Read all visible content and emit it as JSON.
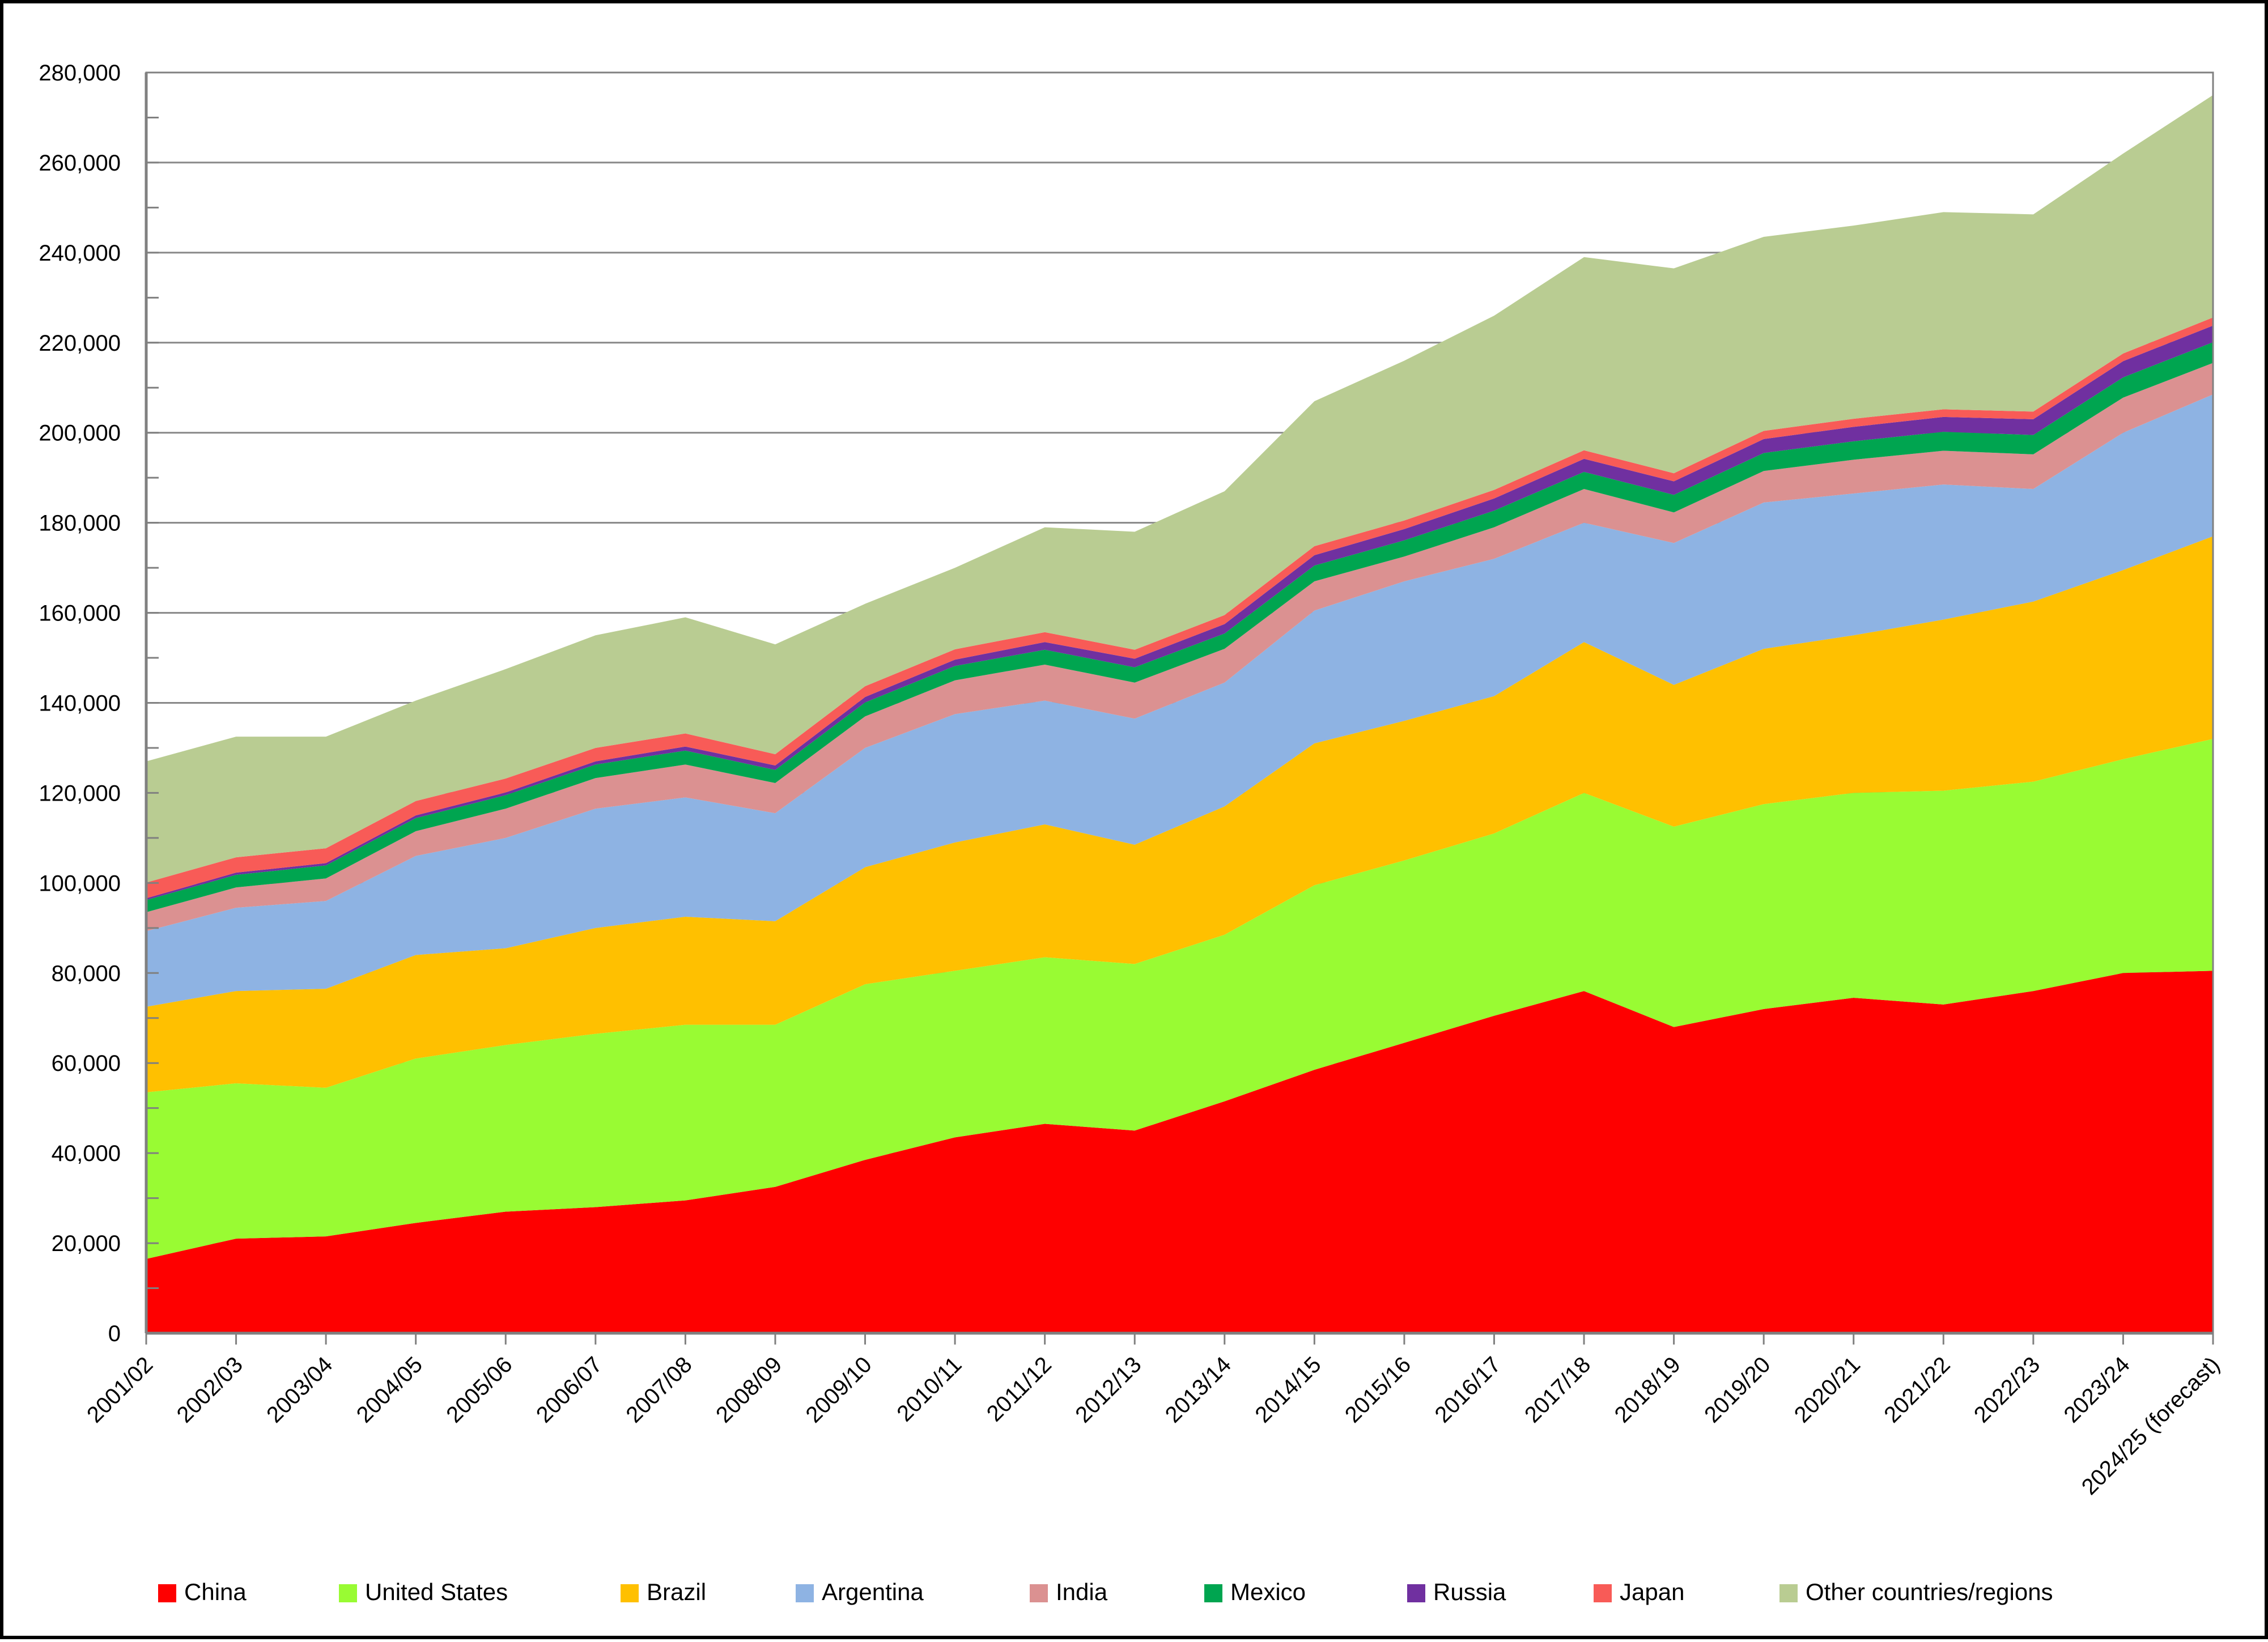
{
  "chart_data": {
    "type": "area",
    "stacked": true,
    "title": "",
    "xlabel": "",
    "ylabel": "",
    "grid": "horizontal-major",
    "legend_position": "bottom",
    "categories": [
      "2001/02",
      "2002/03",
      "2003/04",
      "2004/05",
      "2005/06",
      "2006/07",
      "2007/08",
      "2008/09",
      "2009/10",
      "2010/11",
      "2011/12",
      "2012/13",
      "2013/14",
      "2014/15",
      "2015/16",
      "2016/17",
      "2017/18",
      "2018/19",
      "2019/20",
      "2020/21",
      "2021/22",
      "2022/23",
      "2023/24",
      "2024/25 (forecast)"
    ],
    "series": [
      {
        "name": "China",
        "color": "#FE0000",
        "values": [
          16500,
          21000,
          21500,
          24500,
          27000,
          28000,
          29500,
          32500,
          38500,
          43500,
          46500,
          45000,
          51500,
          58500,
          64500,
          70500,
          76000,
          68000,
          72000,
          74500,
          73000,
          76000,
          80000,
          80500
        ]
      },
      {
        "name": "United States",
        "color": "#99FB33",
        "values": [
          37000,
          34500,
          33000,
          36500,
          37000,
          38500,
          39000,
          36000,
          39000,
          37000,
          37000,
          37000,
          37000,
          41000,
          40500,
          40500,
          44000,
          44500,
          45500,
          45500,
          47500,
          46500,
          47500,
          51500
        ]
      },
      {
        "name": "Brazil",
        "color": "#FFC000",
        "values": [
          19000,
          20500,
          22000,
          23000,
          21500,
          23500,
          24000,
          23000,
          26000,
          28500,
          29500,
          26500,
          28500,
          31500,
          31000,
          30500,
          33500,
          31500,
          34500,
          35000,
          38000,
          40000,
          42000,
          45000
        ]
      },
      {
        "name": "Argentina",
        "color": "#8EB3E3",
        "values": [
          16800,
          18500,
          19500,
          22000,
          24500,
          26500,
          26500,
          24000,
          26500,
          28500,
          27500,
          28000,
          27500,
          29500,
          31000,
          30500,
          26500,
          31500,
          32500,
          31500,
          30000,
          25000,
          30500,
          31500
        ]
      },
      {
        "name": "India",
        "color": "#DB9191",
        "values": [
          4200,
          4500,
          5000,
          5500,
          6500,
          6800,
          7300,
          6700,
          7000,
          7500,
          8000,
          8000,
          7500,
          6500,
          5500,
          7000,
          7500,
          6800,
          7000,
          7500,
          7500,
          7700,
          7800,
          7000
        ]
      },
      {
        "name": "Mexico",
        "color": "#00A550",
        "values": [
          2700,
          2800,
          2900,
          2900,
          3000,
          3000,
          3100,
          2900,
          3100,
          3200,
          3300,
          3400,
          3400,
          3500,
          3600,
          3700,
          3800,
          3900,
          4000,
          4100,
          4200,
          4300,
          4500,
          4600
        ]
      },
      {
        "name": "Russia",
        "color": "#7030A0",
        "values": [
          400,
          500,
          500,
          600,
          600,
          700,
          900,
          1000,
          1200,
          1400,
          1700,
          1900,
          2100,
          2300,
          2500,
          2700,
          2900,
          3000,
          3100,
          3200,
          3300,
          3500,
          3600,
          3700
        ]
      },
      {
        "name": "Japan",
        "color": "#F85B57",
        "values": [
          3500,
          3400,
          3300,
          3200,
          3100,
          3000,
          2900,
          2500,
          2400,
          2300,
          2200,
          2000,
          2000,
          2000,
          1900,
          1900,
          1900,
          1800,
          1800,
          1800,
          1700,
          1700,
          1700,
          1800
        ]
      },
      {
        "name": "Other countries/regions",
        "color": "#B9CC92",
        "values": [
          26900,
          26800,
          24800,
          22300,
          24300,
          25000,
          25800,
          24400,
          18300,
          18100,
          23300,
          26200,
          27500,
          32200,
          35500,
          38700,
          42900,
          45500,
          43100,
          42900,
          43800,
          43800,
          44400,
          49400
        ]
      }
    ],
    "totals": [
      127000,
      132500,
      132500,
      140500,
      147500,
      155000,
      159000,
      153000,
      162000,
      170000,
      179000,
      178000,
      187000,
      207000,
      216000,
      226000,
      239000,
      236500,
      243500,
      246000,
      249000,
      248500,
      262000,
      275000
    ],
    "y_axis": {
      "min": 0,
      "max": 280000,
      "major_step": 20000,
      "minor_step": 10000,
      "tick_labels": [
        "0",
        "20,000",
        "40,000",
        "60,000",
        "80,000",
        "100,000",
        "120,000",
        "140,000",
        "160,000",
        "180,000",
        "200,000",
        "220,000",
        "240,000",
        "260,000",
        "280,000"
      ]
    },
    "x_axis": {
      "labels_rotation_deg": 45
    }
  },
  "colors": {
    "background": "#FFFFFF",
    "gridline": "#888888",
    "axis": "#808080",
    "plot_border": "#808080",
    "outer_border": "#000000",
    "text": "#000000"
  }
}
